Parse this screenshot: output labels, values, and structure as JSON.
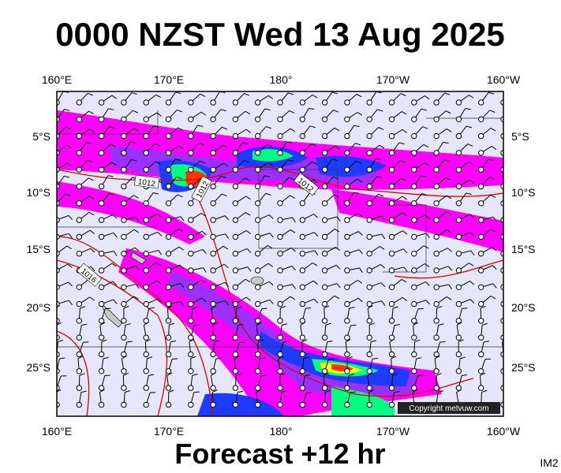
{
  "header": {
    "title": "0000 NZST Wed 13 Aug 2025"
  },
  "axes": {
    "longitude_labels": [
      "160°E",
      "170°E",
      "180°",
      "170°W",
      "160°W"
    ],
    "latitude_labels": [
      "5°S",
      "10°S",
      "15°S",
      "20°S",
      "25°S"
    ]
  },
  "isobar_labels": [
    "1012",
    "1012",
    "1012",
    "1016"
  ],
  "footer": {
    "forecast": "Forecast +12 hr",
    "image_id": "IM2",
    "copyright": "Copyright metvuw.com"
  }
}
